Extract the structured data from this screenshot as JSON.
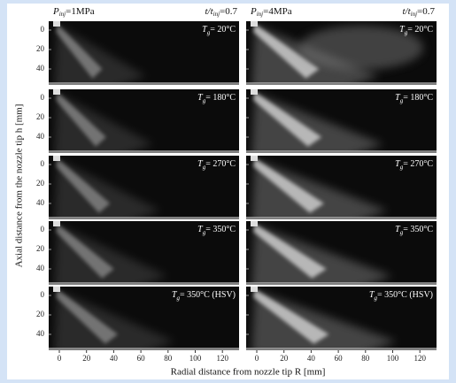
{
  "columns": [
    {
      "pressure": {
        "symbol": "P",
        "sub": "inj",
        "value": "=1MPa"
      },
      "time": {
        "symbol": "t/t",
        "sub": "inj",
        "value": "=0.7"
      }
    },
    {
      "pressure": {
        "symbol": "P",
        "sub": "inj",
        "value": "=4MPa"
      },
      "time": {
        "symbol": "t/t",
        "sub": "inj",
        "value": "=0.7"
      }
    }
  ],
  "rows": [
    {
      "symbol": "T",
      "sub": "g",
      "value": "= 20°C"
    },
    {
      "symbol": "T",
      "sub": "g",
      "value": "= 180°C"
    },
    {
      "symbol": "T",
      "sub": "g",
      "value": "= 270°C"
    },
    {
      "symbol": "T",
      "sub": "g",
      "value": "= 350°C"
    },
    {
      "symbol": "T",
      "sub": "g",
      "value": "= 350°C (HSV)"
    }
  ],
  "y_axis": {
    "label": "Axial distance from the nozzle tip h [mm]",
    "ticks": [
      0,
      20,
      40
    ]
  },
  "x_axis": {
    "label": "Radial distance from nozzle tip R [mm]",
    "ticks": [
      0,
      20,
      40,
      60,
      80,
      100,
      120
    ]
  }
}
